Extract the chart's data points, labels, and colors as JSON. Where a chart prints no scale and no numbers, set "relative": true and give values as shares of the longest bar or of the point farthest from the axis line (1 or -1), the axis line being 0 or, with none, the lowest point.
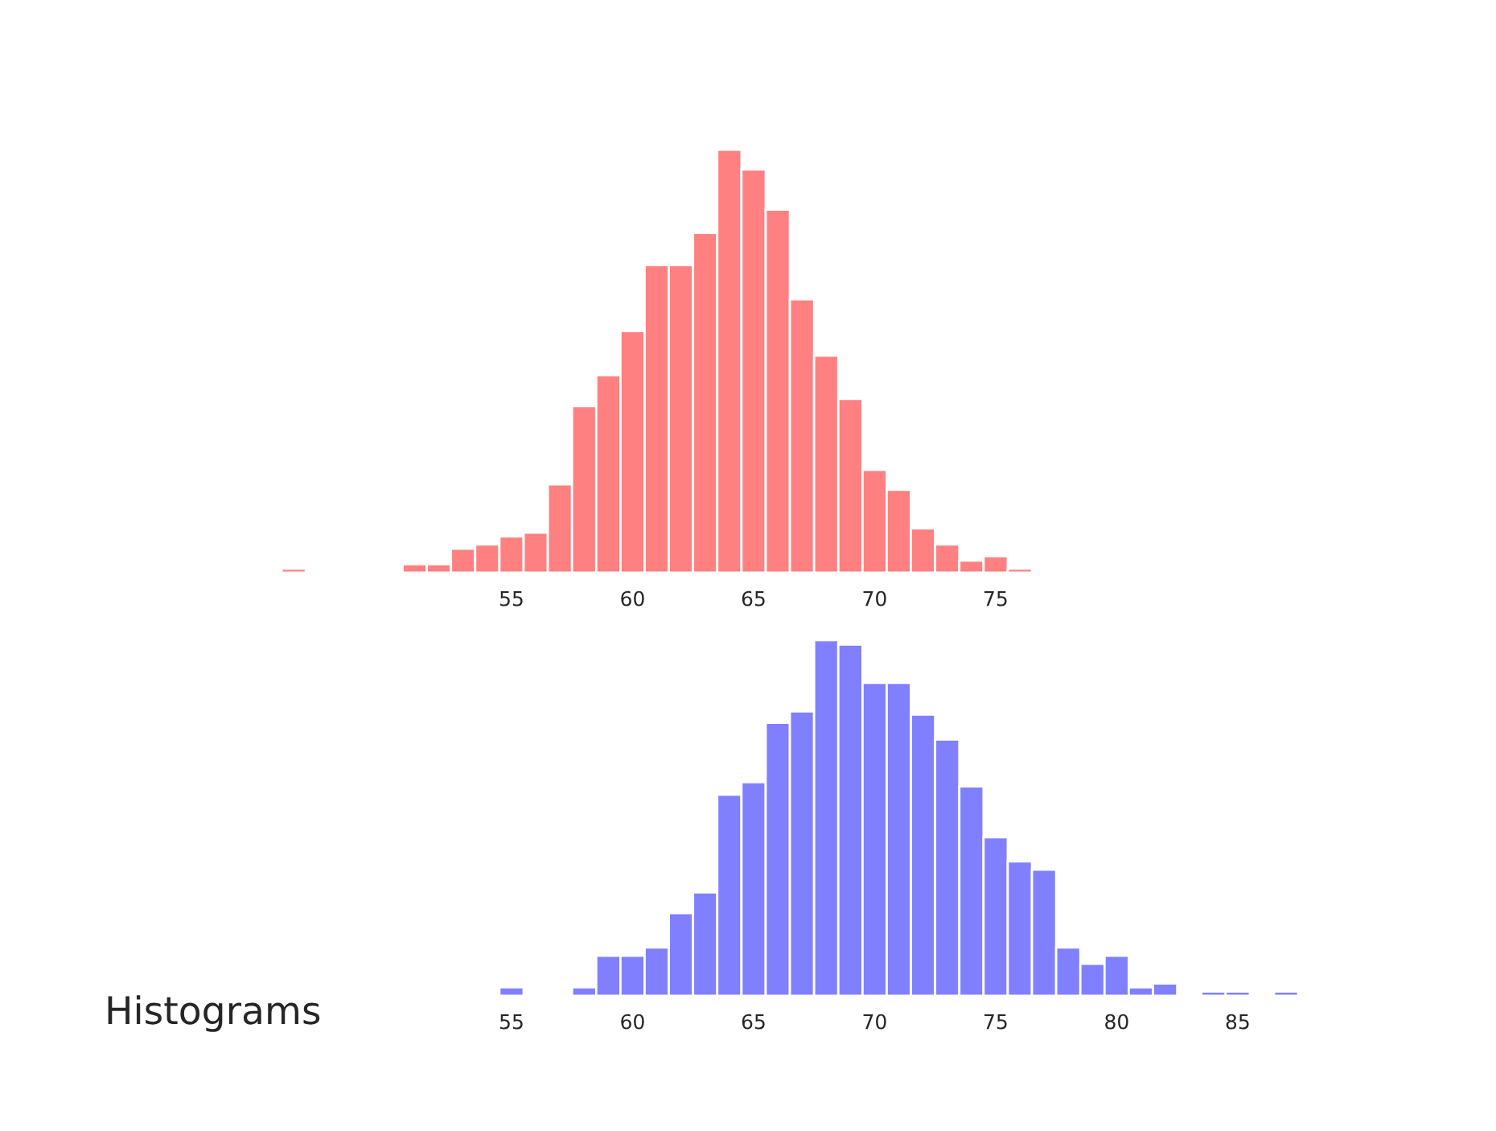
{
  "chart_data": [
    {
      "type": "bar",
      "relative": true,
      "color": "#ff8080",
      "tick_labels": "x",
      "grid": false,
      "legend": false,
      "x": [
        46,
        47,
        48,
        49,
        50,
        51,
        52,
        53,
        54,
        55,
        56,
        57,
        58,
        59,
        60,
        61,
        62,
        63,
        64,
        65,
        66,
        67,
        68,
        69,
        70,
        71,
        72,
        73,
        74,
        75,
        76
      ],
      "values": [
        0.01,
        0,
        0,
        0,
        0,
        0.02,
        0.02,
        0.057,
        0.067,
        0.086,
        0.095,
        0.209,
        0.394,
        0.467,
        0.571,
        0.727,
        0.727,
        0.803,
        1,
        0.953,
        0.858,
        0.646,
        0.513,
        0.411,
        0.243,
        0.196,
        0.105,
        0.067,
        0.029,
        0.039,
        0.01
      ],
      "xlim": [
        45.5,
        76.5
      ],
      "xticks": [
        55,
        60,
        65,
        70,
        75
      ]
    },
    {
      "type": "bar",
      "relative": true,
      "color": "#8080ff",
      "tick_labels": "x",
      "grid": false,
      "legend": false,
      "x": [
        55,
        56,
        57,
        58,
        59,
        60,
        61,
        62,
        63,
        64,
        65,
        66,
        67,
        68,
        69,
        70,
        71,
        72,
        73,
        74,
        75,
        76,
        77,
        78,
        79,
        80,
        81,
        82,
        83,
        84,
        85,
        86,
        87
      ],
      "values": [
        0.024,
        0,
        0,
        0.024,
        0.113,
        0.113,
        0.136,
        0.233,
        0.291,
        0.566,
        0.601,
        0.768,
        0.8,
        1,
        0.988,
        0.88,
        0.88,
        0.791,
        0.721,
        0.589,
        0.446,
        0.378,
        0.355,
        0.136,
        0.09,
        0.113,
        0.024,
        0.035,
        0,
        0.012,
        0.012,
        0,
        0.012
      ],
      "xlim": [
        54.5,
        87.5
      ],
      "xticks": [
        55,
        60,
        65,
        70,
        75,
        80,
        85
      ],
      "annotations": [
        "Histograms"
      ]
    }
  ]
}
